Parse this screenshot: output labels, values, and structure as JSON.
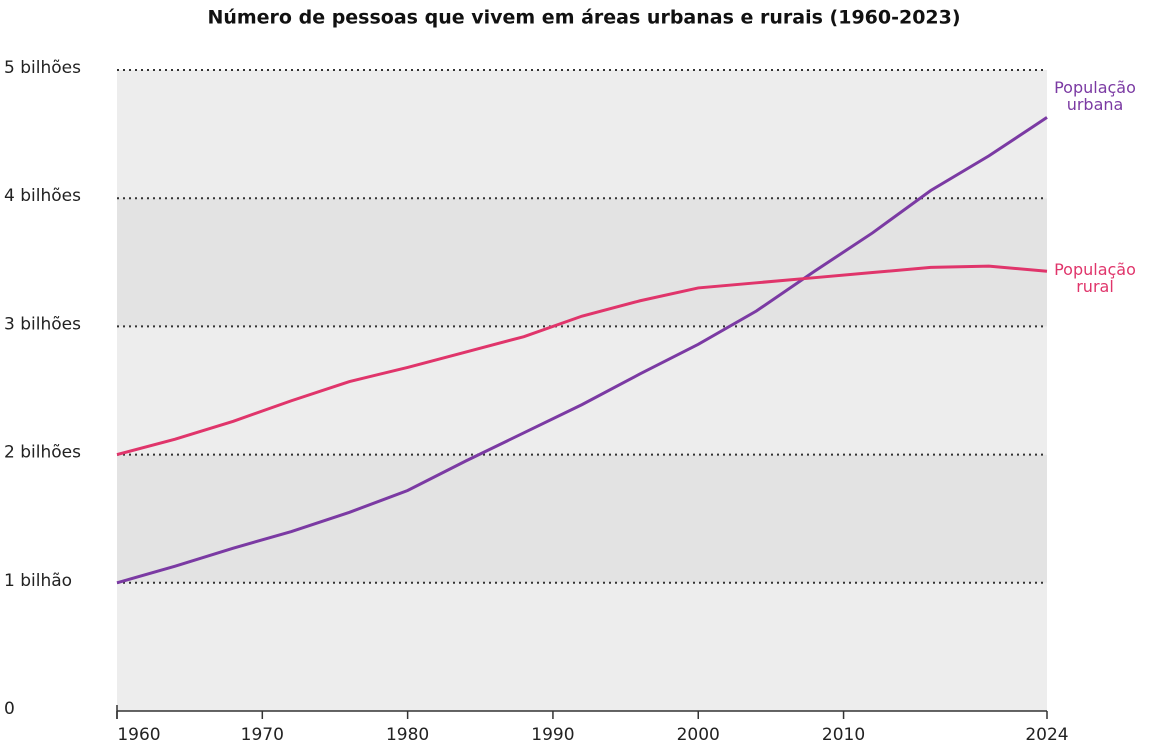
{
  "chart_data": {
    "type": "line",
    "title": "Número de pessoas que vivem em áreas urbanas e rurais (1960-2023)",
    "x": [
      1960,
      1964,
      1968,
      1972,
      1976,
      1980,
      1984,
      1988,
      1992,
      1996,
      2000,
      2004,
      2008,
      2012,
      2016,
      2020,
      2024
    ],
    "series": [
      {
        "name": "População urbana",
        "color": "#7b3aa3",
        "values": [
          1.0,
          1.13,
          1.27,
          1.4,
          1.55,
          1.72,
          1.95,
          2.17,
          2.39,
          2.63,
          2.86,
          3.12,
          3.43,
          3.73,
          4.06,
          4.33,
          4.63
        ]
      },
      {
        "name": "População rural",
        "color": "#e0356b",
        "values": [
          2.0,
          2.12,
          2.26,
          2.42,
          2.57,
          2.68,
          2.8,
          2.92,
          3.08,
          3.2,
          3.3,
          3.34,
          3.38,
          3.42,
          3.46,
          3.47,
          3.43
        ]
      }
    ],
    "xlim": [
      1960,
      2024
    ],
    "xticks": [
      1960,
      1970,
      1980,
      1990,
      2000,
      2010,
      2024
    ],
    "ylim": [
      0,
      5
    ],
    "yticks": [
      0,
      {
        "value": 1,
        "label": "1 bilhão"
      },
      {
        "value": 2,
        "label": "2 bilhões"
      },
      {
        "value": 3,
        "label": "3 bilhões"
      },
      {
        "value": 4,
        "label": "4 bilhões"
      },
      {
        "value": 5,
        "label": "5 bilhões"
      }
    ],
    "grid": true
  }
}
